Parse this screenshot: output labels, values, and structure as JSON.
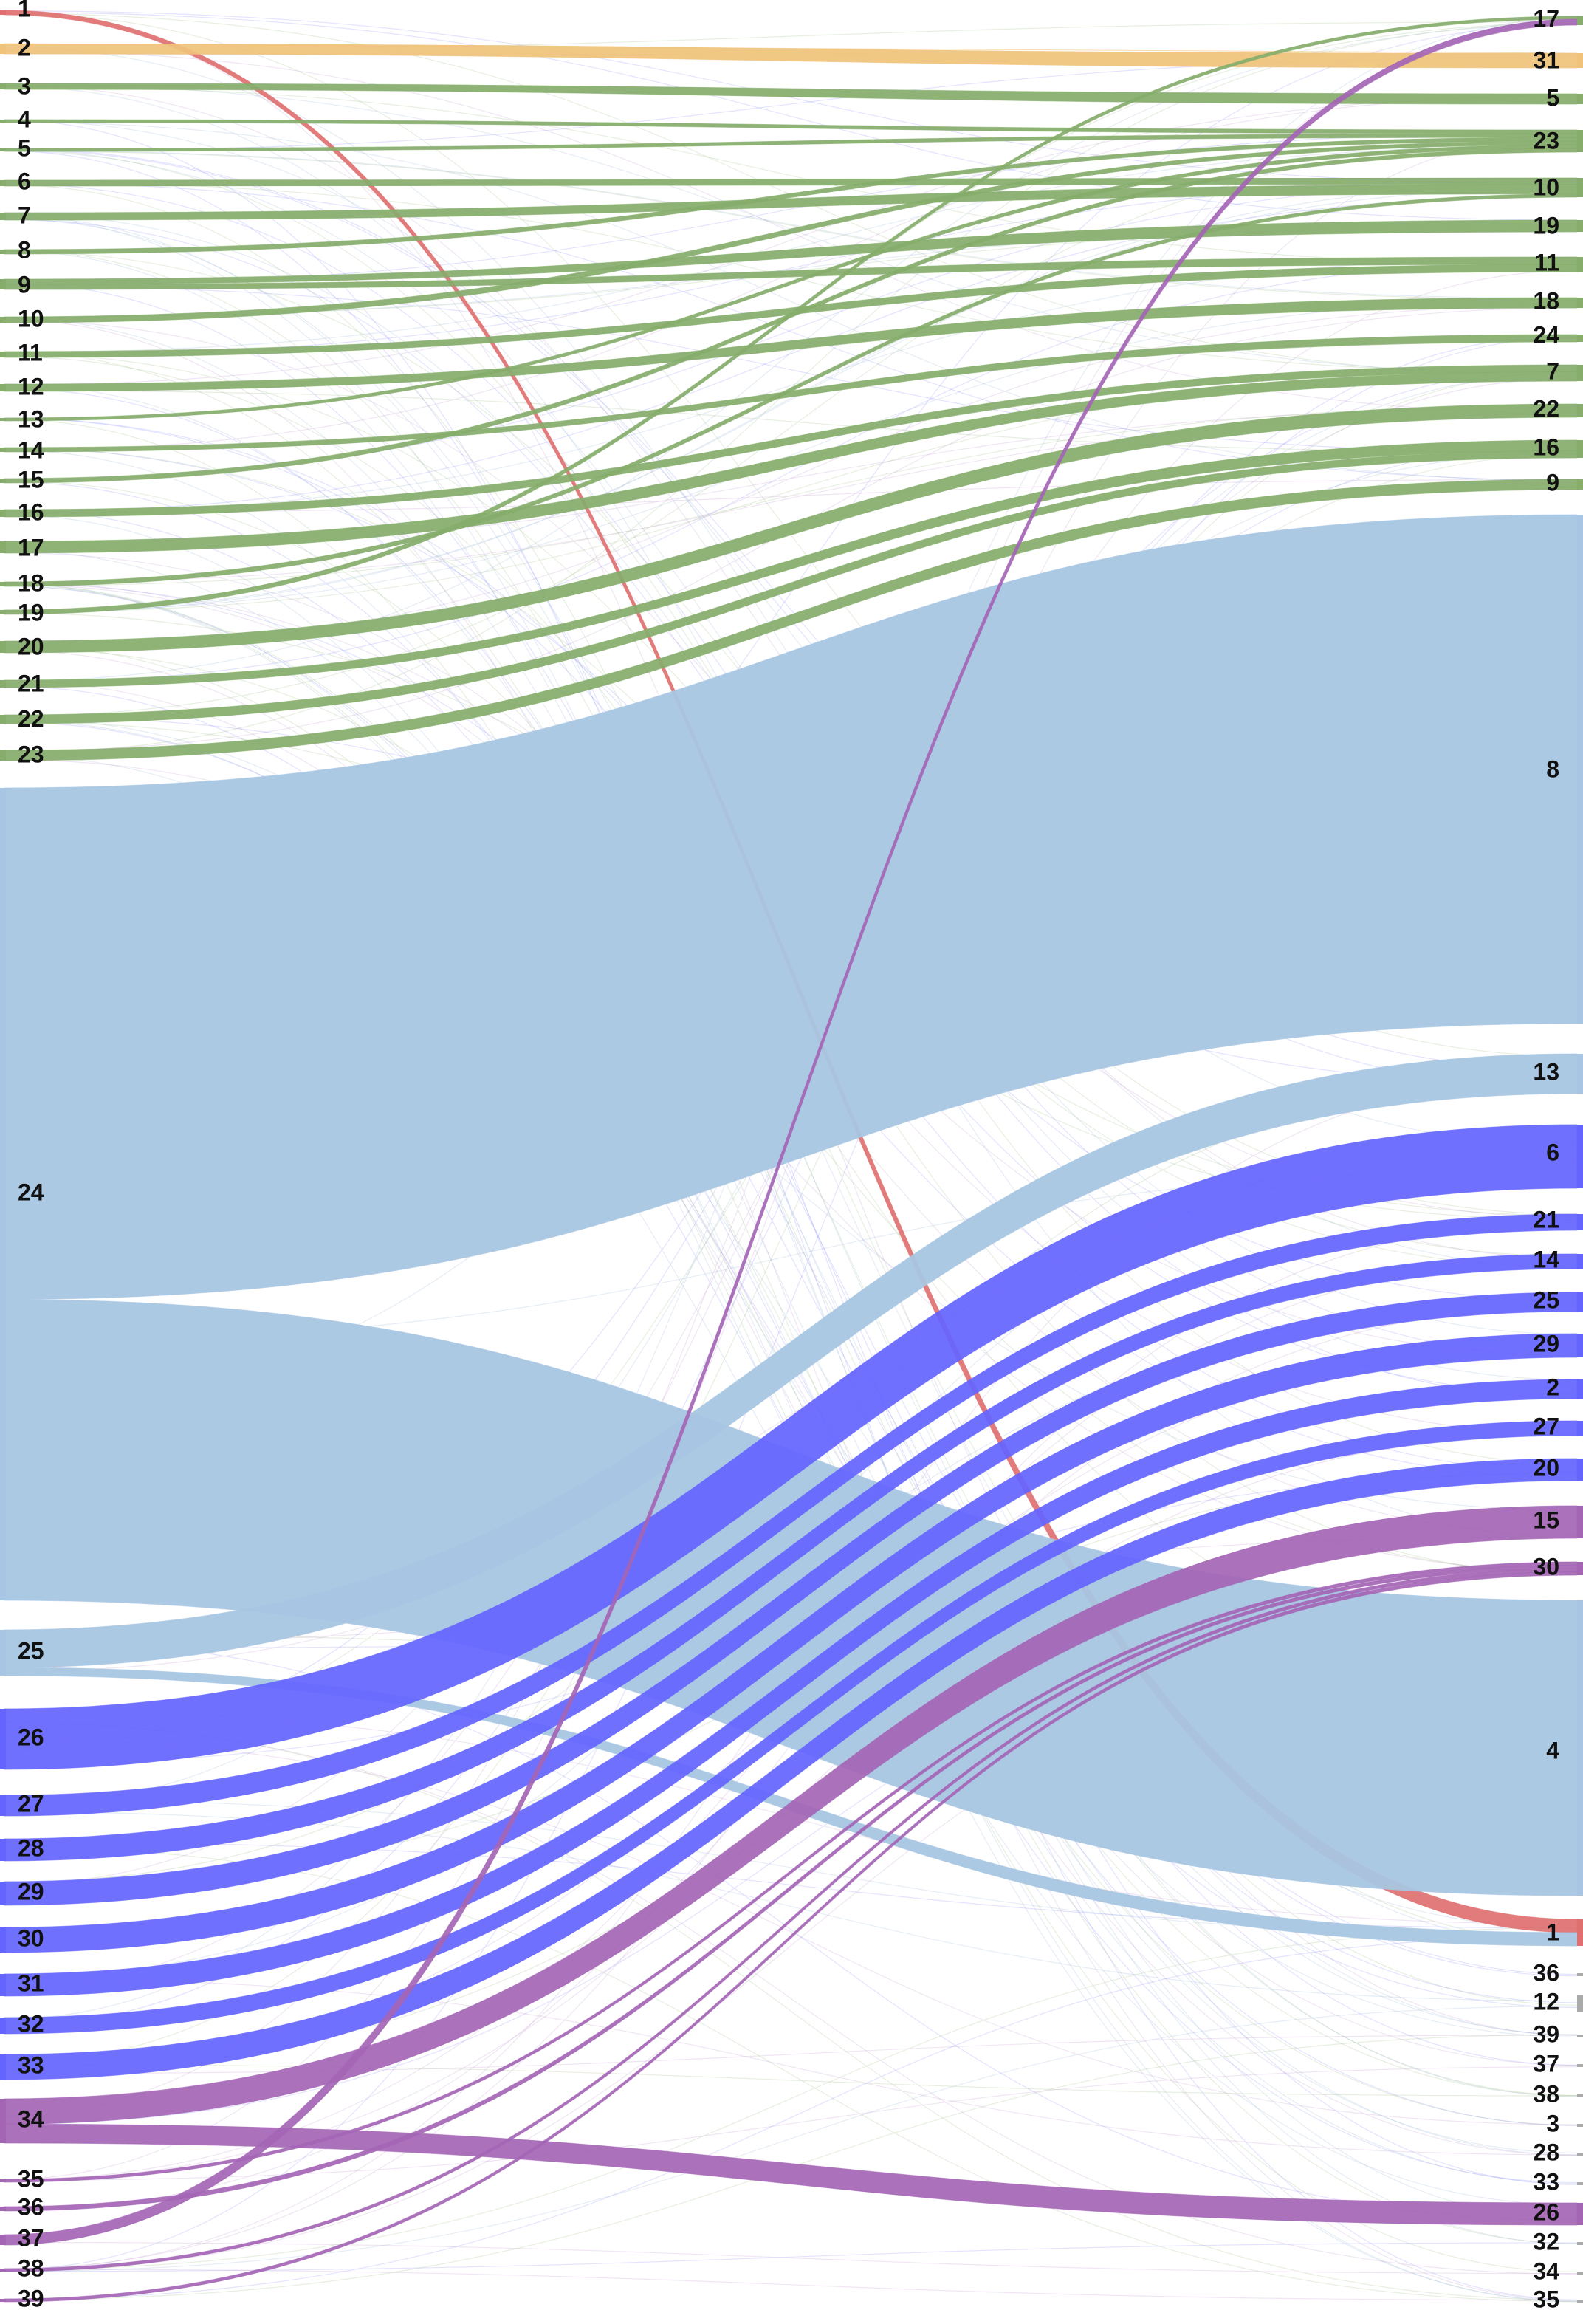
{
  "diagram": {
    "type": "sankey",
    "left_labels": [
      "1",
      "2",
      "3",
      "4",
      "5",
      "6",
      "7",
      "8",
      "9",
      "10",
      "11",
      "12",
      "13",
      "14",
      "15",
      "16",
      "17",
      "18",
      "19",
      "20",
      "21",
      "22",
      "23",
      "24",
      "25",
      "26",
      "27",
      "28",
      "29",
      "30",
      "31",
      "32",
      "33",
      "34",
      "35",
      "36",
      "37",
      "38",
      "39"
    ],
    "right_labels": [
      "17",
      "31",
      "5",
      "23",
      "10",
      "19",
      "11",
      "18",
      "24",
      "7",
      "22",
      "16",
      "9",
      "8",
      "13",
      "6",
      "21",
      "14",
      "25",
      "29",
      "2",
      "27",
      "20",
      "15",
      "30",
      "4",
      "1",
      "36",
      "12",
      "39",
      "37",
      "38",
      "3",
      "28",
      "33",
      "26",
      "32",
      "34",
      "35"
    ]
  },
  "colors": {
    "red": "#e07070",
    "orange": "#f0c27a",
    "green": "#86ad6b",
    "steelblue": "#a8c6e3",
    "blue": "#6464ff",
    "purple": "#a465b5",
    "label": "#111111"
  },
  "flows": [
    {
      "from": "1",
      "to": "1",
      "group": "red",
      "w": 3
    },
    {
      "from": "2",
      "to": "31",
      "group": "orange",
      "w": 4
    },
    {
      "from": "3",
      "to": "5",
      "group": "green",
      "w": 3
    },
    {
      "from": "4",
      "to": "23",
      "group": "green",
      "w": 1
    },
    {
      "from": "5",
      "to": "23",
      "group": "green",
      "w": 1
    },
    {
      "from": "6",
      "to": "10",
      "group": "green",
      "w": 2
    },
    {
      "from": "7",
      "to": "10",
      "group": "green",
      "w": 3
    },
    {
      "from": "8",
      "to": "23",
      "group": "green",
      "w": 1
    },
    {
      "from": "9",
      "to": "19",
      "group": "green",
      "w": 2
    },
    {
      "from": "9",
      "to": "11",
      "group": "green",
      "w": 2
    },
    {
      "from": "10",
      "to": "23",
      "group": "green",
      "w": 1
    },
    {
      "from": "11",
      "to": "11",
      "group": "green",
      "w": 2
    },
    {
      "from": "12",
      "to": "18",
      "group": "green",
      "w": 3
    },
    {
      "from": "13",
      "to": "23",
      "group": "green",
      "w": 1
    },
    {
      "from": "14",
      "to": "24",
      "group": "green",
      "w": 1
    },
    {
      "from": "15",
      "to": "23",
      "group": "green",
      "w": 1
    },
    {
      "from": "16",
      "to": "7",
      "group": "green",
      "w": 3
    },
    {
      "from": "17",
      "to": "7",
      "group": "green",
      "w": 4
    },
    {
      "from": "18",
      "to": "10",
      "group": "green",
      "w": 1
    },
    {
      "from": "19",
      "to": "17",
      "group": "green",
      "w": 1
    },
    {
      "from": "20",
      "to": "22",
      "group": "green",
      "w": 4
    },
    {
      "from": "21",
      "to": "16",
      "group": "green",
      "w": 3
    },
    {
      "from": "22",
      "to": "16",
      "group": "green",
      "w": 2
    },
    {
      "from": "23",
      "to": "9",
      "group": "green",
      "w": 3
    },
    {
      "from": "24",
      "to": "8",
      "group": "steelblue",
      "w": 170
    },
    {
      "from": "24",
      "to": "4",
      "group": "steelblue",
      "w": 100
    },
    {
      "from": "25",
      "to": "13",
      "group": "steelblue",
      "w": 14
    },
    {
      "from": "25",
      "to": "1",
      "group": "steelblue",
      "w": 3
    },
    {
      "from": "26",
      "to": "6",
      "group": "blue",
      "w": 21
    },
    {
      "from": "27",
      "to": "21",
      "group": "blue",
      "w": 5
    },
    {
      "from": "28",
      "to": "14",
      "group": "blue",
      "w": 5
    },
    {
      "from": "29",
      "to": "25",
      "group": "blue",
      "w": 6
    },
    {
      "from": "30",
      "to": "29",
      "group": "blue",
      "w": 7
    },
    {
      "from": "31",
      "to": "2",
      "group": "blue",
      "w": 5
    },
    {
      "from": "32",
      "to": "27",
      "group": "blue",
      "w": 4
    },
    {
      "from": "33",
      "to": "20",
      "group": "blue",
      "w": 7
    },
    {
      "from": "34",
      "to": "15",
      "group": "purple",
      "w": 8
    },
    {
      "from": "34",
      "to": "26",
      "group": "purple",
      "w": 6
    },
    {
      "from": "35",
      "to": "30",
      "group": "purple",
      "w": 1
    },
    {
      "from": "36",
      "to": "30",
      "group": "purple",
      "w": 1
    },
    {
      "from": "37",
      "to": "17",
      "group": "purple",
      "w": 2
    },
    {
      "from": "38",
      "to": "30",
      "group": "purple",
      "w": 1
    },
    {
      "from": "39",
      "to": "30",
      "group": "purple",
      "w": 1
    }
  ]
}
